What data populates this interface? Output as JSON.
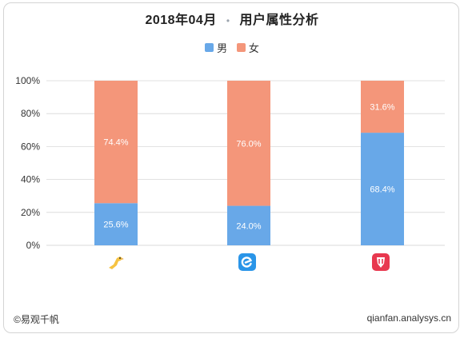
{
  "header": {
    "date": "2018年04月",
    "separator": "•",
    "subject": "用户属性分析"
  },
  "footer": {
    "source": "©易观千帆",
    "site": "qianfan.analysys.cn"
  },
  "colors": {
    "male": "#68a8e8",
    "female": "#f4967a",
    "grid": "#d8d8d8"
  },
  "icons": [
    "yellow-bird-app-icon",
    "blue-e-app-icon",
    "red-shield-app-icon"
  ],
  "chart_data": {
    "type": "bar",
    "stacked": true,
    "percent": true,
    "categories": [
      "",
      "",
      ""
    ],
    "ylim": [
      0,
      100
    ],
    "yticks": [
      "0%",
      "20%",
      "40%",
      "60%",
      "80%",
      "100%"
    ],
    "series": [
      {
        "name": "男",
        "values": [
          25.6,
          24.0,
          68.4
        ],
        "labels": [
          "25.6%",
          "24.0%",
          "68.4%"
        ]
      },
      {
        "name": "女",
        "values": [
          74.4,
          76.0,
          31.6
        ],
        "labels": [
          "74.4%",
          "76.0%",
          "31.6%"
        ]
      }
    ],
    "legend": "top-center",
    "grid": true
  }
}
